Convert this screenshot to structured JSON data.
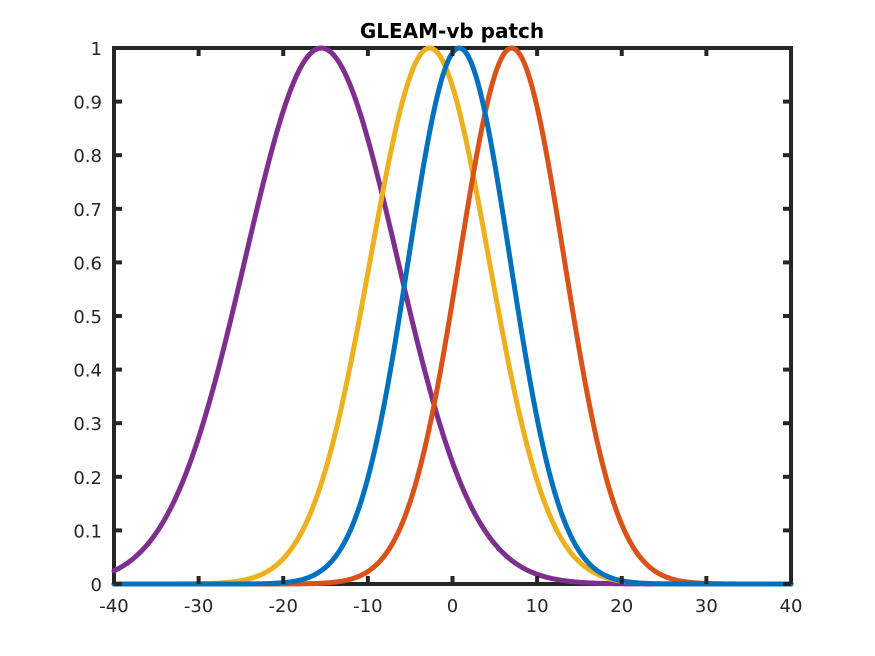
{
  "chart_data": {
    "type": "line",
    "title": "GLEAM-vb patch",
    "xlabel": "",
    "ylabel": "",
    "xlim": [
      -40,
      40
    ],
    "ylim": [
      0,
      1
    ],
    "grid": false,
    "x_ticks": [
      -40,
      -30,
      -20,
      -10,
      0,
      10,
      20,
      30,
      40
    ],
    "y_ticks": [
      0,
      0.1,
      0.2,
      0.3,
      0.4,
      0.5,
      0.6,
      0.7,
      0.8,
      0.9,
      1
    ],
    "x_tick_labels": [
      "-40",
      "-30",
      "-20",
      "-10",
      "0",
      "10",
      "20",
      "30",
      "40"
    ],
    "y_tick_labels": [
      "0",
      "0.1",
      "0.2",
      "0.3",
      "0.4",
      "0.5",
      "0.6",
      "0.7",
      "0.8",
      "0.9",
      "1"
    ],
    "series": [
      {
        "color": "#0072BD",
        "peak_x": 0.8,
        "peak_y": 1,
        "sigma": 6.0
      },
      {
        "color": "#D95319",
        "peak_x": 7.0,
        "peak_y": 1,
        "sigma": 6.2
      },
      {
        "color": "#EDB120",
        "peak_x": -2.7,
        "peak_y": 1,
        "sigma": 7.0
      },
      {
        "color": "#7E2F8E",
        "peak_x": -15.5,
        "peak_y": 1,
        "sigma": 9.0
      }
    ]
  }
}
